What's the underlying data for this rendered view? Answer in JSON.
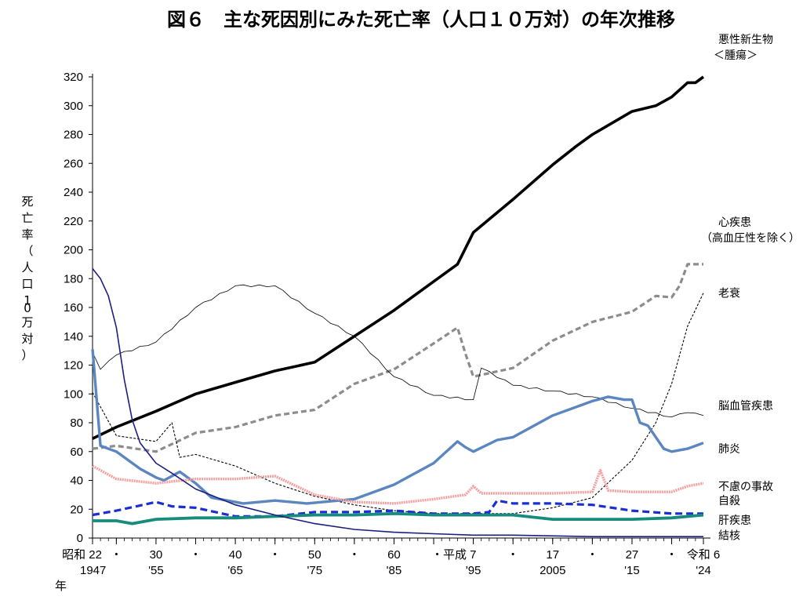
{
  "chart_data": {
    "type": "line",
    "title": "図６　主な死因別にみた死亡率（人口１０万対）の年次推移",
    "ylabel": "死亡率（人口10万対）",
    "xlabel": "年",
    "ylim": [
      0,
      320
    ],
    "xlim": [
      1947,
      2024
    ],
    "grid": false,
    "yticks": [
      0,
      20,
      40,
      60,
      80,
      100,
      120,
      140,
      160,
      180,
      200,
      220,
      240,
      260,
      280,
      300,
      320
    ],
    "xticks": [
      {
        "x": 1947,
        "era": "昭和 22",
        "year": "1947"
      },
      {
        "x": 1950,
        "era": "・",
        "year": ""
      },
      {
        "x": 1955,
        "era": "30",
        "year": "'55"
      },
      {
        "x": 1960,
        "era": "・",
        "year": ""
      },
      {
        "x": 1965,
        "era": "40",
        "year": "'65"
      },
      {
        "x": 1970,
        "era": "・",
        "year": ""
      },
      {
        "x": 1975,
        "era": "50",
        "year": "'75"
      },
      {
        "x": 1980,
        "era": "・",
        "year": ""
      },
      {
        "x": 1985,
        "era": "60",
        "year": "'85"
      },
      {
        "x": 1990,
        "era": "・平成 7",
        "year": ""
      },
      {
        "x": 1995,
        "era": "",
        "year": "'95"
      },
      {
        "x": 2000,
        "era": "・",
        "year": ""
      },
      {
        "x": 2005,
        "era": "17",
        "year": "2005"
      },
      {
        "x": 2010,
        "era": "・",
        "year": ""
      },
      {
        "x": 2015,
        "era": "27",
        "year": "'15"
      },
      {
        "x": 2020,
        "era": "・",
        "year": ""
      },
      {
        "x": 2024,
        "era": "令和 6",
        "year": "'24"
      }
    ],
    "series": [
      {
        "name": "悪性新生物＜腫瘍＞",
        "label_lines": [
          "悪性新生物",
          "＜腫瘍＞"
        ],
        "color": "#000000",
        "width": 3.6,
        "dash": "",
        "label_y": 320,
        "x": [
          1947,
          1950,
          1955,
          1960,
          1965,
          1970,
          1975,
          1980,
          1985,
          1990,
          1993,
          1995,
          2000,
          2005,
          2008,
          2010,
          2015,
          2018,
          2020,
          2022,
          2023,
          2024
        ],
        "y": [
          69,
          77,
          88,
          100,
          108,
          116,
          122,
          140,
          158,
          178,
          190,
          212,
          235,
          259,
          272,
          280,
          296,
          300,
          306,
          316,
          316,
          320
        ]
      },
      {
        "name": "心疾患（高血圧性を除く）",
        "label_lines": [
          "心疾患",
          "（高血圧性を除く）"
        ],
        "color": "#8c8c8c",
        "width": 3.2,
        "dash": "7,4",
        "label_y": 203,
        "x": [
          1947,
          1950,
          1955,
          1960,
          1965,
          1970,
          1975,
          1980,
          1985,
          1990,
          1993,
          1994,
          1995,
          2000,
          2005,
          2010,
          2015,
          2018,
          2020,
          2021,
          2022,
          2024
        ],
        "y": [
          62,
          64,
          60,
          73,
          77,
          85,
          89,
          107,
          117,
          135,
          146,
          128,
          112,
          118,
          137,
          150,
          157,
          168,
          167,
          175,
          190,
          190
        ]
      },
      {
        "name": "老衰",
        "label_lines": [
          "老衰"
        ],
        "color": "#000000",
        "width": 1.1,
        "dash": "3,2",
        "label_y": 170,
        "x": [
          1947,
          1950,
          1955,
          1957,
          1958,
          1960,
          1965,
          1970,
          1975,
          1980,
          1985,
          1990,
          1995,
          2000,
          2005,
          2010,
          2015,
          2018,
          2020,
          2022,
          2024
        ],
        "y": [
          101,
          71,
          67,
          80,
          56,
          58,
          50,
          38,
          29,
          23,
          19,
          17,
          17,
          17,
          21,
          28,
          54,
          80,
          107,
          147,
          170
        ]
      },
      {
        "name": "脳血管疾患",
        "label_lines": [
          "脳血管疾患"
        ],
        "color": "#000000",
        "width": 0.8,
        "dash": "",
        "label_y": 92,
        "x": [
          1947,
          1948,
          1950,
          1955,
          1960,
          1965,
          1970,
          1975,
          1980,
          1985,
          1990,
          1995,
          1996,
          2000,
          2005,
          2010,
          2015,
          2020,
          2022,
          2024
        ],
        "y": [
          129,
          117,
          127,
          136,
          160,
          175,
          175,
          156,
          140,
          112,
          99,
          96,
          118,
          106,
          102,
          98,
          90,
          84,
          87,
          85
        ],
        "jitter": 1
      },
      {
        "name": "肺炎",
        "label_lines": [
          "肺炎"
        ],
        "color": "#5b86c0",
        "width": 3.4,
        "dash": "",
        "label_y": 62,
        "x": [
          1947,
          1948,
          1950,
          1953,
          1955,
          1956,
          1958,
          1960,
          1962,
          1964,
          1966,
          1970,
          1974,
          1978,
          1980,
          1985,
          1990,
          1993,
          1994,
          1995,
          1998,
          2000,
          2005,
          2010,
          2012,
          2014,
          2015,
          2016,
          2017,
          2019,
          2020,
          2022,
          2024
        ],
        "y": [
          131,
          64,
          60,
          48,
          42,
          40,
          46,
          38,
          28,
          26,
          24,
          26,
          24,
          26,
          27,
          37,
          52,
          67,
          63,
          60,
          68,
          70,
          85,
          95,
          98,
          96,
          96,
          80,
          78,
          62,
          60,
          62,
          66
        ]
      },
      {
        "name": "不慮の事故",
        "label_lines": [
          "不慮の事故"
        ],
        "color": "#f4a0a0",
        "width": 3.4,
        "dash": "2,1",
        "label_y": 36,
        "x": [
          1947,
          1950,
          1955,
          1960,
          1965,
          1970,
          1975,
          1980,
          1985,
          1990,
          1994,
          1995,
          1996,
          2000,
          2005,
          2010,
          2011,
          2012,
          2015,
          2020,
          2022,
          2024
        ],
        "y": [
          50,
          41,
          38,
          41,
          41,
          43,
          30,
          25,
          24,
          27,
          30,
          36,
          31,
          31,
          31,
          32,
          47,
          33,
          32,
          32,
          36,
          38
        ]
      },
      {
        "name": "自殺",
        "label_lines": [
          "自殺"
        ],
        "color": "#1a2fd0",
        "width": 3.2,
        "dash": "9,5",
        "label_y": 26,
        "x": [
          1947,
          1950,
          1955,
          1957,
          1960,
          1965,
          1970,
          1975,
          1980,
          1985,
          1990,
          1995,
          1997,
          1998,
          2000,
          2005,
          2010,
          2015,
          2020,
          2024
        ],
        "y": [
          16,
          19,
          25,
          22,
          21,
          15,
          15,
          18,
          18,
          19,
          17,
          17,
          18,
          26,
          24,
          24,
          23,
          19,
          17,
          17
        ]
      },
      {
        "name": "肝疾患",
        "label_lines": [
          "肝疾患"
        ],
        "color": "#168b7e",
        "width": 3.8,
        "dash": "",
        "label_y": 12.5,
        "x": [
          1947,
          1950,
          1952,
          1955,
          1960,
          1965,
          1970,
          1975,
          1980,
          1985,
          1990,
          1995,
          2000,
          2005,
          2010,
          2015,
          2020,
          2024
        ],
        "y": [
          12,
          12,
          10,
          13,
          14,
          14,
          15,
          16,
          16,
          17,
          16,
          16,
          16,
          13,
          13,
          13,
          14,
          16
        ]
      },
      {
        "name": "結核",
        "label_lines": [
          "結核"
        ],
        "color": "#1b1f80",
        "width": 1.6,
        "dash": "",
        "label_y": 2,
        "x": [
          1947,
          1948,
          1949,
          1950,
          1951,
          1952,
          1953,
          1955,
          1957,
          1960,
          1965,
          1970,
          1975,
          1980,
          1985,
          1990,
          1995,
          2000,
          2010,
          2024
        ],
        "y": [
          187,
          180,
          168,
          146,
          110,
          82,
          66,
          52,
          45,
          34,
          23,
          16,
          10,
          6,
          4,
          3,
          2,
          2,
          1,
          1
        ]
      }
    ]
  }
}
